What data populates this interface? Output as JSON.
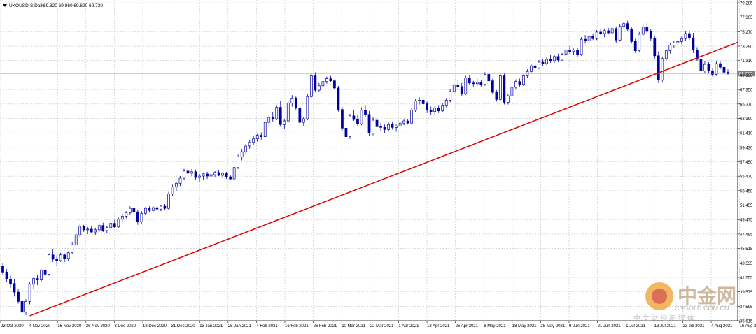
{
  "header": {
    "symbol_label": "UKOUSD-S,Daily",
    "ohlc_label": "69.820 69.860 69.690 69.730"
  },
  "watermark": {
    "brand": "中金网",
    "domain": "CNGOLD.COM.CN",
    "tagline": "中 文 财 经 新 媒 体"
  },
  "colors": {
    "background": "#ffffff",
    "grid": "#c0c0c0",
    "candle": "#0000a0",
    "trendline": "#e00000",
    "price_line": "#808080",
    "price_tag_bg": "#808080",
    "price_tag_text": "#ffffff"
  },
  "chart_data": {
    "type": "candlestick",
    "y_ticks": [
      "79.285",
      "77.305",
      "75.270",
      "73.290",
      "71.310",
      "69.330",
      "67.350",
      "65.370",
      "63.390",
      "61.410",
      "59.430",
      "57.450",
      "55.470",
      "53.450",
      "51.455",
      "49.475",
      "47.495",
      "45.515",
      "43.535",
      "41.555",
      "39.575",
      "37.595",
      "35.615"
    ],
    "x_ticks": [
      "23 Oct 2020",
      "4 Nov 2020",
      "16 Nov 2020",
      "26 Nov 2020",
      "8 Dec 2020",
      "18 Dec 2020",
      "31 Dec 2020",
      "13 Jan 2021",
      "25 Jan 2021",
      "4 Feb 2021",
      "16 Feb 2021",
      "26 Feb 2021",
      "10 Mar 2021",
      "22 Mar 2021",
      "1 Apr 2021",
      "13 Apr 2021",
      "26 Apr 2021",
      "6 May 2021",
      "18 May 2021",
      "28 May 2021",
      "9 Jun 2021",
      "21 Jun 2021",
      "1 Jul 2021",
      "13 Jul 2021",
      "23 Jul 2021",
      "4 Aug 2021",
      "16 Aug 2021"
    ],
    "current_price": "69.730",
    "ylim": [
      35.5,
      79.4
    ],
    "candles": [
      [
        42.8,
        43.3,
        41.6,
        42.0
      ],
      [
        42.0,
        42.4,
        40.6,
        41.0
      ],
      [
        41.0,
        41.5,
        39.8,
        40.4
      ],
      [
        40.4,
        41.0,
        38.6,
        39.2
      ],
      [
        39.2,
        39.7,
        37.6,
        37.9
      ],
      [
        37.9,
        38.5,
        36.0,
        36.4
      ],
      [
        36.4,
        38.2,
        36.0,
        37.9
      ],
      [
        37.9,
        40.6,
        37.5,
        40.3
      ],
      [
        40.3,
        41.3,
        39.6,
        41.1
      ],
      [
        41.1,
        41.6,
        40.2,
        40.9
      ],
      [
        40.9,
        42.4,
        40.7,
        42.3
      ],
      [
        42.3,
        42.8,
        41.3,
        41.7
      ],
      [
        41.7,
        44.6,
        41.5,
        44.4
      ],
      [
        44.4,
        45.2,
        43.4,
        43.8
      ],
      [
        43.8,
        44.3,
        42.8,
        43.6
      ],
      [
        43.6,
        44.7,
        43.4,
        44.4
      ],
      [
        44.4,
        44.6,
        43.4,
        43.9
      ],
      [
        43.9,
        44.9,
        43.6,
        44.7
      ],
      [
        44.7,
        46.2,
        44.5,
        45.8
      ],
      [
        45.8,
        47.4,
        45.6,
        47.2
      ],
      [
        47.2,
        48.8,
        46.9,
        48.4
      ],
      [
        48.4,
        48.6,
        47.6,
        47.9
      ],
      [
        47.9,
        48.3,
        47.3,
        48.0
      ],
      [
        48.0,
        48.4,
        47.4,
        47.6
      ],
      [
        47.6,
        48.2,
        47.2,
        47.9
      ],
      [
        47.9,
        48.8,
        47.6,
        48.5
      ],
      [
        48.5,
        48.9,
        47.6,
        47.8
      ],
      [
        47.8,
        48.4,
        47.4,
        48.2
      ],
      [
        48.2,
        49.1,
        47.9,
        48.8
      ],
      [
        48.8,
        49.3,
        48.1,
        48.3
      ],
      [
        48.3,
        49.6,
        48.2,
        49.4
      ],
      [
        49.4,
        50.2,
        49.0,
        49.8
      ],
      [
        49.8,
        50.5,
        49.5,
        50.3
      ],
      [
        50.3,
        51.2,
        50.0,
        50.9
      ],
      [
        50.9,
        51.3,
        50.1,
        50.4
      ],
      [
        50.4,
        50.7,
        48.6,
        49.0
      ],
      [
        49.0,
        50.5,
        48.8,
        50.2
      ],
      [
        50.2,
        51.1,
        49.9,
        50.9
      ],
      [
        50.9,
        51.2,
        50.3,
        50.6
      ],
      [
        50.6,
        51.2,
        50.5,
        51.0
      ],
      [
        51.0,
        51.2,
        50.6,
        50.8
      ],
      [
        50.8,
        51.4,
        50.5,
        51.2
      ],
      [
        51.2,
        51.5,
        50.7,
        50.9
      ],
      [
        50.9,
        53.2,
        50.7,
        52.9
      ],
      [
        52.9,
        54.2,
        52.6,
        53.9
      ],
      [
        53.9,
        54.6,
        53.3,
        54.4
      ],
      [
        54.4,
        55.4,
        54.0,
        55.1
      ],
      [
        55.1,
        56.4,
        54.8,
        56.1
      ],
      [
        56.1,
        56.6,
        55.4,
        55.8
      ],
      [
        55.8,
        56.4,
        55.4,
        56.0
      ],
      [
        56.0,
        56.3,
        54.9,
        55.2
      ],
      [
        55.2,
        55.7,
        54.6,
        55.4
      ],
      [
        55.4,
        55.9,
        54.9,
        55.7
      ],
      [
        55.7,
        56.0,
        55.0,
        55.4
      ],
      [
        55.4,
        55.9,
        54.8,
        55.6
      ],
      [
        55.6,
        56.1,
        55.2,
        55.9
      ],
      [
        55.9,
        56.2,
        55.4,
        55.5
      ],
      [
        55.5,
        56.0,
        55.1,
        55.8
      ],
      [
        55.8,
        56.0,
        55.0,
        55.3
      ],
      [
        55.3,
        55.6,
        54.8,
        55.0
      ],
      [
        55.0,
        56.9,
        54.8,
        56.6
      ],
      [
        56.6,
        58.4,
        56.4,
        58.1
      ],
      [
        58.1,
        59.2,
        57.6,
        58.8
      ],
      [
        58.8,
        59.9,
        58.5,
        59.6
      ],
      [
        59.6,
        60.4,
        59.2,
        60.1
      ],
      [
        60.1,
        61.0,
        59.8,
        60.6
      ],
      [
        60.6,
        61.3,
        60.2,
        61.1
      ],
      [
        61.1,
        61.5,
        60.5,
        60.9
      ],
      [
        60.9,
        63.2,
        60.7,
        62.9
      ],
      [
        62.9,
        63.9,
        62.5,
        63.6
      ],
      [
        63.6,
        64.3,
        63.0,
        63.4
      ],
      [
        63.4,
        65.3,
        63.2,
        65.0
      ],
      [
        65.0,
        65.9,
        62.3,
        62.6
      ],
      [
        62.6,
        63.4,
        62.0,
        63.1
      ],
      [
        63.1,
        65.8,
        62.9,
        65.6
      ],
      [
        65.6,
        66.7,
        65.1,
        66.3
      ],
      [
        66.3,
        66.5,
        64.6,
        64.9
      ],
      [
        64.9,
        65.2,
        62.4,
        62.9
      ],
      [
        62.9,
        63.7,
        62.4,
        63.4
      ],
      [
        63.4,
        66.9,
        63.2,
        66.5
      ],
      [
        66.5,
        69.7,
        66.3,
        69.4
      ],
      [
        69.4,
        69.9,
        67.1,
        67.4
      ],
      [
        67.4,
        68.4,
        67.1,
        68.0
      ],
      [
        68.0,
        68.9,
        67.6,
        68.6
      ],
      [
        68.6,
        69.3,
        68.3,
        69.0
      ],
      [
        69.0,
        69.4,
        68.5,
        68.7
      ],
      [
        68.7,
        68.9,
        67.5,
        67.7
      ],
      [
        67.7,
        68.0,
        64.4,
        64.7
      ],
      [
        64.7,
        65.1,
        61.7,
        62.1
      ],
      [
        62.1,
        62.6,
        60.5,
        60.9
      ],
      [
        60.9,
        64.1,
        60.6,
        63.8
      ],
      [
        63.8,
        64.6,
        63.1,
        63.3
      ],
      [
        63.3,
        64.0,
        62.4,
        62.7
      ],
      [
        62.7,
        65.0,
        62.5,
        64.6
      ],
      [
        64.6,
        65.3,
        63.7,
        64.0
      ],
      [
        64.0,
        64.5,
        61.0,
        61.4
      ],
      [
        61.4,
        63.6,
        61.1,
        63.2
      ],
      [
        63.2,
        63.8,
        62.0,
        62.3
      ],
      [
        62.3,
        62.8,
        61.7,
        62.2
      ],
      [
        62.2,
        62.6,
        61.4,
        61.9
      ],
      [
        61.9,
        62.9,
        61.6,
        62.6
      ],
      [
        62.6,
        62.9,
        61.9,
        62.2
      ],
      [
        62.2,
        62.6,
        61.6,
        62.4
      ],
      [
        62.4,
        63.0,
        62.1,
        62.8
      ],
      [
        62.8,
        63.3,
        62.5,
        63.1
      ],
      [
        63.1,
        63.4,
        62.6,
        62.8
      ],
      [
        62.8,
        64.9,
        62.6,
        64.6
      ],
      [
        64.6,
        66.2,
        64.3,
        65.9
      ],
      [
        65.9,
        66.4,
        65.4,
        66.0
      ],
      [
        66.0,
        66.3,
        65.2,
        65.5
      ],
      [
        65.5,
        65.8,
        64.2,
        64.6
      ],
      [
        64.6,
        65.1,
        63.9,
        64.4
      ],
      [
        64.4,
        65.2,
        64.0,
        64.9
      ],
      [
        64.9,
        65.3,
        64.2,
        64.5
      ],
      [
        64.5,
        65.6,
        64.3,
        65.3
      ],
      [
        65.3,
        66.3,
        65.0,
        66.0
      ],
      [
        66.0,
        67.5,
        65.7,
        67.2
      ],
      [
        67.2,
        68.4,
        66.9,
        68.1
      ],
      [
        68.1,
        68.8,
        67.6,
        67.9
      ],
      [
        67.9,
        68.4,
        66.6,
        66.9
      ],
      [
        66.9,
        69.4,
        66.7,
        69.1
      ],
      [
        69.1,
        69.5,
        68.1,
        68.4
      ],
      [
        68.4,
        68.7,
        67.9,
        68.3
      ],
      [
        68.3,
        69.0,
        68.0,
        68.5
      ],
      [
        68.5,
        68.8,
        67.9,
        68.2
      ],
      [
        68.2,
        69.9,
        68.0,
        69.6
      ],
      [
        69.6,
        69.9,
        68.4,
        68.7
      ],
      [
        68.7,
        69.0,
        66.8,
        67.1
      ],
      [
        67.1,
        67.4,
        65.8,
        66.1
      ],
      [
        66.1,
        69.7,
        65.8,
        69.4
      ],
      [
        69.4,
        69.7,
        65.4,
        65.7
      ],
      [
        65.7,
        66.9,
        65.4,
        66.6
      ],
      [
        66.6,
        68.1,
        66.3,
        67.8
      ],
      [
        67.8,
        68.9,
        67.5,
        68.6
      ],
      [
        68.6,
        69.0,
        67.9,
        68.2
      ],
      [
        68.2,
        69.6,
        68.0,
        69.4
      ],
      [
        69.4,
        70.3,
        69.1,
        70.0
      ],
      [
        70.0,
        71.1,
        69.7,
        70.8
      ],
      [
        70.8,
        71.3,
        70.2,
        70.5
      ],
      [
        70.5,
        71.6,
        70.3,
        71.3
      ],
      [
        71.3,
        71.8,
        70.8,
        71.1
      ],
      [
        71.1,
        72.0,
        70.9,
        71.7
      ],
      [
        71.7,
        72.3,
        71.2,
        71.5
      ],
      [
        71.5,
        72.3,
        71.2,
        72.1
      ],
      [
        72.1,
        72.5,
        71.3,
        71.6
      ],
      [
        71.6,
        72.6,
        71.4,
        72.4
      ],
      [
        72.4,
        73.3,
        72.1,
        73.0
      ],
      [
        73.0,
        73.6,
        72.5,
        72.8
      ],
      [
        72.8,
        73.2,
        72.3,
        73.0
      ],
      [
        73.0,
        73.3,
        72.1,
        72.4
      ],
      [
        72.4,
        74.8,
        72.2,
        74.5
      ],
      [
        74.5,
        75.1,
        73.9,
        74.3
      ],
      [
        74.3,
        75.2,
        74.0,
        74.9
      ],
      [
        74.9,
        75.3,
        74.4,
        74.6
      ],
      [
        74.6,
        75.8,
        74.4,
        75.5
      ],
      [
        75.5,
        76.0,
        75.1,
        75.3
      ],
      [
        75.3,
        76.0,
        74.8,
        75.7
      ],
      [
        75.7,
        76.1,
        75.2,
        75.4
      ],
      [
        75.4,
        76.3,
        75.2,
        76.0
      ],
      [
        76.0,
        76.3,
        74.0,
        74.4
      ],
      [
        74.4,
        76.6,
        74.2,
        76.3
      ],
      [
        76.3,
        77.0,
        75.9,
        76.7
      ],
      [
        76.7,
        77.1,
        75.6,
        75.9
      ],
      [
        75.9,
        76.2,
        73.9,
        74.2
      ],
      [
        74.2,
        74.6,
        72.6,
        72.9
      ],
      [
        72.9,
        75.5,
        72.7,
        75.2
      ],
      [
        75.2,
        76.5,
        74.9,
        76.2
      ],
      [
        76.2,
        76.9,
        75.3,
        75.6
      ],
      [
        75.6,
        75.9,
        74.3,
        74.6
      ],
      [
        74.6,
        74.9,
        71.8,
        72.2
      ],
      [
        72.2,
        72.8,
        68.4,
        68.8
      ],
      [
        68.8,
        72.1,
        68.5,
        71.8
      ],
      [
        71.8,
        73.1,
        71.5,
        72.9
      ],
      [
        72.9,
        74.0,
        72.5,
        73.7
      ],
      [
        73.7,
        74.3,
        73.3,
        74.0
      ],
      [
        74.0,
        74.5,
        73.6,
        74.2
      ],
      [
        74.2,
        74.9,
        73.8,
        74.6
      ],
      [
        74.6,
        75.6,
        74.3,
        75.3
      ],
      [
        75.3,
        75.7,
        74.4,
        74.7
      ],
      [
        74.7,
        75.4,
        72.6,
        73.0
      ],
      [
        73.0,
        73.4,
        71.4,
        71.7
      ],
      [
        71.7,
        72.1,
        69.7,
        70.1
      ],
      [
        70.1,
        71.4,
        69.8,
        71.0
      ],
      [
        71.0,
        71.3,
        69.8,
        70.1
      ],
      [
        70.1,
        70.4,
        69.3,
        69.6
      ],
      [
        69.6,
        71.4,
        69.4,
        71.1
      ],
      [
        71.1,
        71.5,
        70.3,
        70.6
      ],
      [
        70.6,
        71.0,
        69.6,
        69.9
      ],
      [
        69.9,
        70.3,
        69.5,
        69.7
      ]
    ],
    "trendline": {
      "x_index_start": 7,
      "y_start": 35.9,
      "x_index_end": 205,
      "y_end": 77.1
    }
  }
}
